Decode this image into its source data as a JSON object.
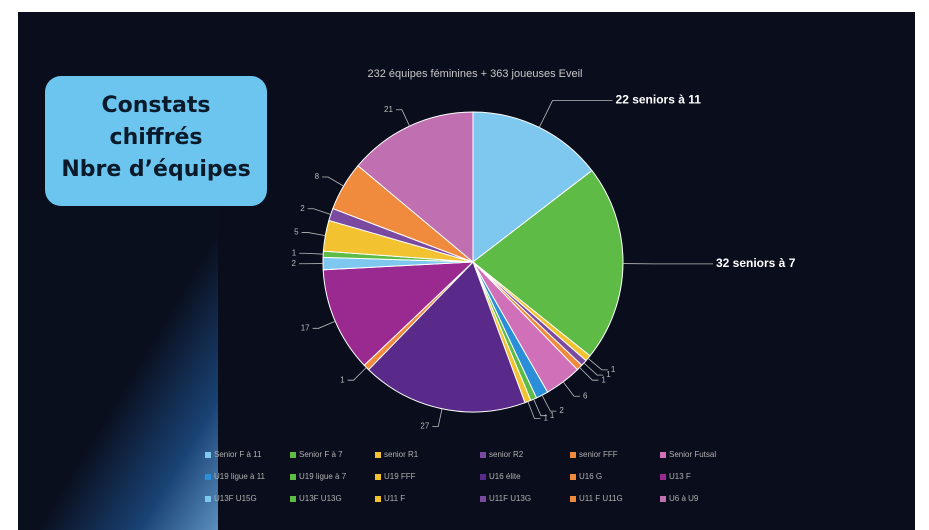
{
  "box": {
    "lines": [
      "Constats",
      "chiffrés",
      "Nbre d’équipes"
    ]
  },
  "chart_data": {
    "type": "pie",
    "title": "232 équipes féminines + 363 joueuses Eveil",
    "categories": [
      "Senior F à 11",
      "Senior F à 7",
      "senior R1",
      "senior R2",
      "senior FFF",
      "Senior Futsal",
      "U19 ligue à 11",
      "U19 ligue à 7",
      "U19 FFF",
      "U16 élite",
      "U16 G",
      "U13 F",
      "U13F U15G",
      "U13F U13G",
      "U11 F",
      "U11F U13G",
      "U11 F U11G",
      "U6 à U9"
    ],
    "values": [
      22,
      32,
      1,
      1,
      1,
      6,
      2,
      1,
      1,
      27,
      1,
      17,
      2,
      1,
      5,
      2,
      8,
      21
    ],
    "value_labels": [
      "22 seniors à 11",
      "32 seniors à 7",
      "1",
      "1",
      "1",
      "6",
      "2",
      "1",
      "1",
      "27",
      "1",
      "17",
      "2",
      "1",
      "5",
      "2",
      "8",
      "21"
    ],
    "colors": [
      "#7ec8ef",
      "#5dbb46",
      "#f2c230",
      "#7a4aa0",
      "#f08a3c",
      "#d070b8",
      "#2a8fd8",
      "#5dbb46",
      "#f2c230",
      "#5a2a8a",
      "#f08a3c",
      "#9a2a90",
      "#7ec8ef",
      "#5dbb46",
      "#f2c230",
      "#7a4aa0",
      "#f08a3c",
      "#c070b0"
    ]
  }
}
